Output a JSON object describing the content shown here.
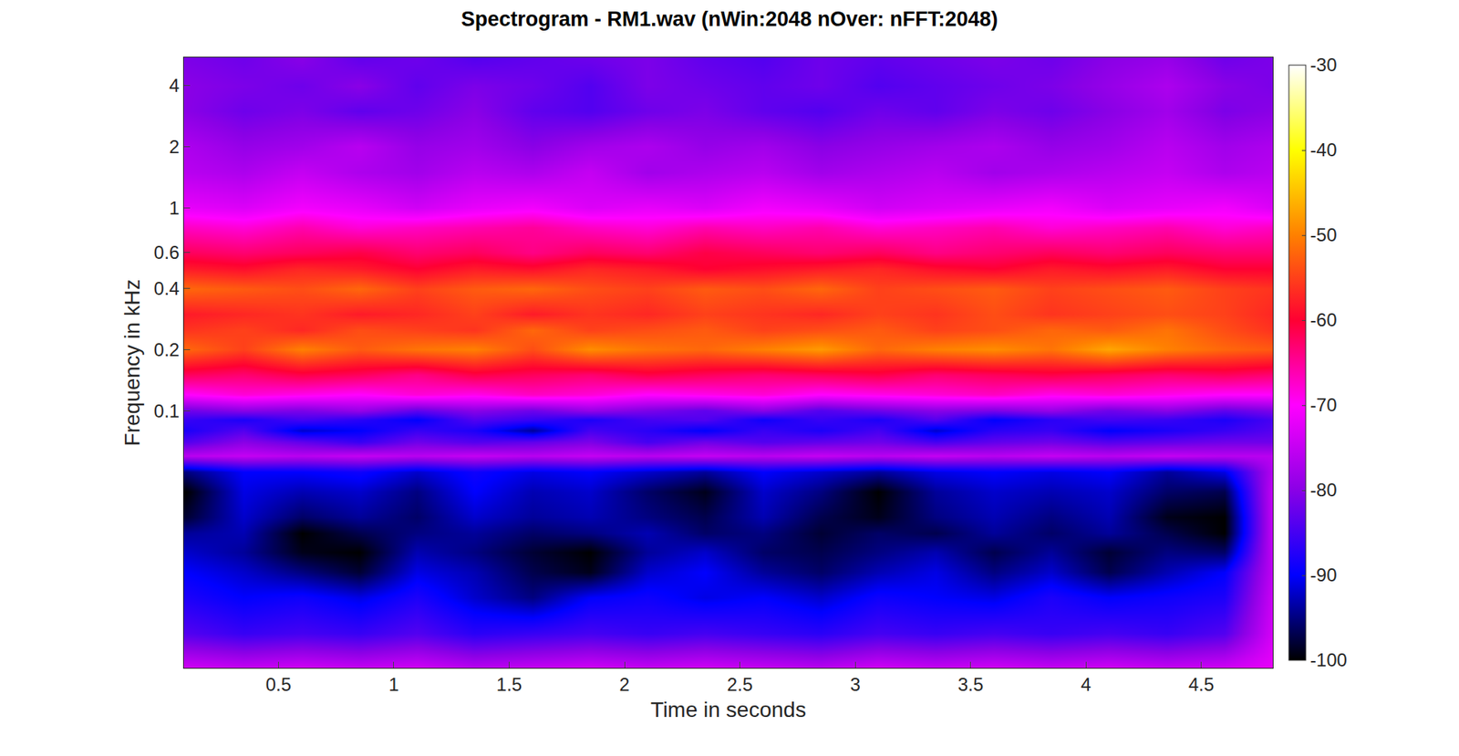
{
  "chart_data": {
    "type": "heatmap",
    "title": "Spectrogram - RM1.wav (nWin:2048 nOver: nFFT:2048)",
    "x_label": "Time in seconds",
    "y_label": "Frequency in kHz",
    "log": "y",
    "xlim": [
      0.09,
      4.81
    ],
    "xticks": [
      0.5,
      1,
      1.5,
      2,
      2.5,
      3,
      3.5,
      4,
      4.5
    ],
    "ylim": [
      0.0054,
      5.5
    ],
    "yticks": [
      0.1,
      0.2,
      0.4,
      0.6,
      1,
      2,
      4
    ],
    "zlim": [
      -100,
      -30
    ],
    "zticks": [
      -100,
      -90,
      -80,
      -70,
      -60,
      -50,
      -40,
      -30
    ],
    "x": [
      0.1,
      0.35,
      0.6,
      0.85,
      1.1,
      1.35,
      1.6,
      1.85,
      2.1,
      2.35,
      2.6,
      2.85,
      3.1,
      3.35,
      3.6,
      3.85,
      4.1,
      4.35,
      4.6,
      4.8
    ],
    "y": [
      0.0054,
      0.008,
      0.012,
      0.016,
      0.02,
      0.025,
      0.03,
      0.04,
      0.05,
      0.06,
      0.07,
      0.08,
      0.09,
      0.1,
      0.12,
      0.15,
      0.2,
      0.25,
      0.3,
      0.4,
      0.5,
      0.6,
      0.8,
      1,
      1.5,
      2,
      3,
      4,
      5.5
    ],
    "z": [
      [
        -74,
        -75,
        -74,
        -75,
        -74,
        -76,
        -75,
        -74,
        -75,
        -74,
        -75,
        -76,
        -74,
        -75,
        -74,
        -75,
        -74,
        -75,
        -74,
        -72
      ],
      [
        -84,
        -86,
        -85,
        -86,
        -84,
        -87,
        -86,
        -85,
        -86,
        -85,
        -86,
        -87,
        -85,
        -86,
        -85,
        -86,
        -85,
        -86,
        -84,
        -74
      ],
      [
        -88,
        -90,
        -89,
        -91,
        -88,
        -92,
        -95,
        -90,
        -89,
        -91,
        -90,
        -92,
        -89,
        -90,
        -91,
        -88,
        -90,
        -89,
        -88,
        -75
      ],
      [
        -90,
        -92,
        -95,
        -98,
        -91,
        -93,
        -97,
        -99,
        -92,
        -90,
        -94,
        -96,
        -93,
        -91,
        -95,
        -92,
        -97,
        -93,
        -90,
        -76
      ],
      [
        -92,
        -94,
        -99,
        -100,
        -93,
        -95,
        -98,
        -100,
        -94,
        -92,
        -96,
        -97,
        -95,
        -93,
        -97,
        -94,
        -98,
        -95,
        -96,
        -76
      ],
      [
        -94,
        -93,
        -100,
        -97,
        -95,
        -94,
        -96,
        -95,
        -93,
        -96,
        -95,
        -98,
        -96,
        -97,
        -94,
        -96,
        -94,
        -97,
        -100,
        -76
      ],
      [
        -98,
        -92,
        -96,
        -94,
        -96,
        -92,
        -94,
        -93,
        -95,
        -97,
        -93,
        -97,
        -99,
        -95,
        -93,
        -95,
        -93,
        -99,
        -100,
        -76
      ],
      [
        -100,
        -91,
        -93,
        -92,
        -95,
        -90,
        -93,
        -92,
        -96,
        -99,
        -92,
        -95,
        -100,
        -94,
        -92,
        -93,
        -92,
        -96,
        -97,
        -76
      ],
      [
        -95,
        -90,
        -90,
        -89,
        -92,
        -89,
        -91,
        -90,
        -92,
        -94,
        -90,
        -92,
        -94,
        -91,
        -90,
        -91,
        -90,
        -94,
        -91,
        -77
      ],
      [
        -76,
        -75,
        -76,
        -75,
        -76,
        -75,
        -76,
        -75,
        -76,
        -75,
        -76,
        -75,
        -76,
        -75,
        -76,
        -75,
        -76,
        -75,
        -76,
        -76
      ],
      [
        -84,
        -80,
        -83,
        -86,
        -82,
        -84,
        -83,
        -81,
        -85,
        -82,
        -84,
        -83,
        -82,
        -85,
        -83,
        -82,
        -84,
        -83,
        -82,
        -82
      ],
      [
        -88,
        -84,
        -92,
        -90,
        -86,
        -88,
        -94,
        -85,
        -87,
        -90,
        -86,
        -88,
        -85,
        -92,
        -87,
        -86,
        -90,
        -88,
        -86,
        -84
      ],
      [
        -86,
        -88,
        -85,
        -87,
        -90,
        -84,
        -86,
        -88,
        -85,
        -84,
        -89,
        -86,
        -88,
        -84,
        -90,
        -87,
        -85,
        -86,
        -88,
        -85
      ],
      [
        -82,
        -80,
        -81,
        -79,
        -83,
        -80,
        -82,
        -79,
        -81,
        -83,
        -80,
        -84,
        -82,
        -80,
        -81,
        -79,
        -82,
        -80,
        -83,
        -81
      ],
      [
        -70,
        -68,
        -69,
        -70,
        -68,
        -69,
        -67,
        -68,
        -70,
        -69,
        -68,
        -70,
        -69,
        -68,
        -67,
        -69,
        -68,
        -69,
        -70,
        -70
      ],
      [
        -62,
        -63,
        -61,
        -62,
        -64,
        -61,
        -62,
        -63,
        -61,
        -62,
        -63,
        -62,
        -61,
        -63,
        -62,
        -61,
        -62,
        -63,
        -62,
        -63
      ],
      [
        -52,
        -55,
        -50,
        -53,
        -51,
        -50,
        -54,
        -49,
        -51,
        -52,
        -50,
        -48,
        -52,
        -50,
        -49,
        -51,
        -47,
        -50,
        -52,
        -53
      ],
      [
        -56,
        -55,
        -57,
        -54,
        -55,
        -56,
        -52,
        -55,
        -54,
        -53,
        -55,
        -54,
        -53,
        -55,
        -54,
        -52,
        -53,
        -51,
        -54,
        -56
      ],
      [
        -58,
        -57,
        -56,
        -58,
        -57,
        -55,
        -58,
        -56,
        -57,
        -55,
        -56,
        -57,
        -55,
        -56,
        -54,
        -56,
        -55,
        -54,
        -55,
        -57
      ],
      [
        -52,
        -53,
        -54,
        -52,
        -55,
        -53,
        -52,
        -54,
        -55,
        -53,
        -54,
        -52,
        -55,
        -54,
        -53,
        -55,
        -54,
        -53,
        -55,
        -56
      ],
      [
        -58,
        -59,
        -57,
        -58,
        -60,
        -58,
        -59,
        -57,
        -58,
        -60,
        -59,
        -58,
        -57,
        -59,
        -60,
        -58,
        -59,
        -58,
        -60,
        -60
      ],
      [
        -62,
        -63,
        -62,
        -61,
        -63,
        -62,
        -64,
        -62,
        -63,
        -61,
        -62,
        -63,
        -62,
        -64,
        -63,
        -62,
        -63,
        -62,
        -63,
        -63
      ],
      [
        -67,
        -68,
        -66,
        -68,
        -67,
        -66,
        -65,
        -67,
        -68,
        -66,
        -67,
        -66,
        -68,
        -67,
        -66,
        -68,
        -67,
        -66,
        -68,
        -67
      ],
      [
        -72,
        -73,
        -71,
        -72,
        -74,
        -72,
        -71,
        -73,
        -72,
        -73,
        -71,
        -72,
        -74,
        -73,
        -72,
        -71,
        -73,
        -72,
        -71,
        -73
      ],
      [
        -76,
        -77,
        -75,
        -77,
        -78,
        -76,
        -77,
        -75,
        -78,
        -77,
        -76,
        -78,
        -77,
        -76,
        -78,
        -77,
        -76,
        -75,
        -77,
        -76
      ],
      [
        -77,
        -79,
        -78,
        -76,
        -79,
        -78,
        -80,
        -78,
        -77,
        -79,
        -78,
        -80,
        -79,
        -78,
        -77,
        -79,
        -78,
        -76,
        -78,
        -77
      ],
      [
        -80,
        -82,
        -81,
        -83,
        -82,
        -80,
        -83,
        -84,
        -82,
        -81,
        -83,
        -84,
        -82,
        -83,
        -81,
        -82,
        -80,
        -78,
        -81,
        -80
      ],
      [
        -80,
        -81,
        -82,
        -80,
        -83,
        -81,
        -82,
        -84,
        -81,
        -82,
        -83,
        -82,
        -84,
        -83,
        -82,
        -81,
        -79,
        -77,
        -80,
        -81
      ],
      [
        -81,
        -82,
        -80,
        -83,
        -82,
        -84,
        -83,
        -82,
        -81,
        -83,
        -84,
        -82,
        -83,
        -82,
        -81,
        -82,
        -80,
        -79,
        -82,
        -81
      ]
    ]
  }
}
